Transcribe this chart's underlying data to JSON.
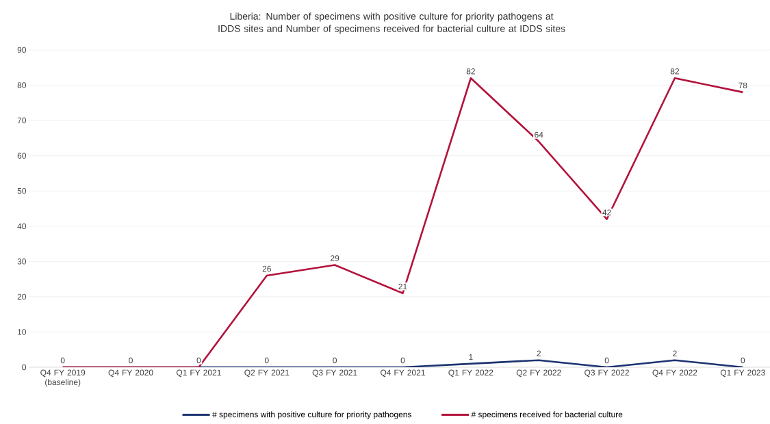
{
  "chart_data": {
    "type": "line",
    "title": "Liberia: Number of specimens with positive culture for priority pathogens at IDDS sites and Number of specimens received for bacterial culture at IDDS sites",
    "categories": [
      "Q4 FY 2019 (baseline)",
      "Q4 FY 2020",
      "Q1 FY 2021",
      "Q2 FY 2021",
      "Q3 FY 2021",
      "Q4 FY 2021",
      "Q1 FY 2022",
      "Q2 FY 2022",
      "Q3 FY 2022",
      "Q4 FY 2022",
      "Q1 FY 2023"
    ],
    "series": [
      {
        "name": "# specimens with positive culture for priority pathogens",
        "color": "#1c3370",
        "values": [
          0,
          0,
          0,
          0,
          0,
          0,
          1,
          2,
          0,
          2,
          0
        ],
        "value_labels": [
          "0",
          "0",
          "0",
          "0",
          "0",
          "0",
          "1",
          "2",
          "0",
          "2",
          "0"
        ]
      },
      {
        "name": "# specimens received for bacterial culture",
        "color": "#b3123b",
        "values": [
          0,
          0,
          0,
          26,
          29,
          21,
          82,
          64,
          42,
          82,
          78
        ],
        "value_labels": [
          null,
          null,
          null,
          "26",
          "29",
          "21",
          "82",
          "64",
          "42",
          "82",
          "78"
        ]
      }
    ],
    "ylim": [
      0,
      90
    ],
    "yticks": [
      0,
      10,
      20,
      30,
      40,
      50,
      60,
      70,
      80,
      90
    ],
    "grid": "y",
    "legend": "bottom",
    "marker": "none",
    "line_style": "solid"
  }
}
